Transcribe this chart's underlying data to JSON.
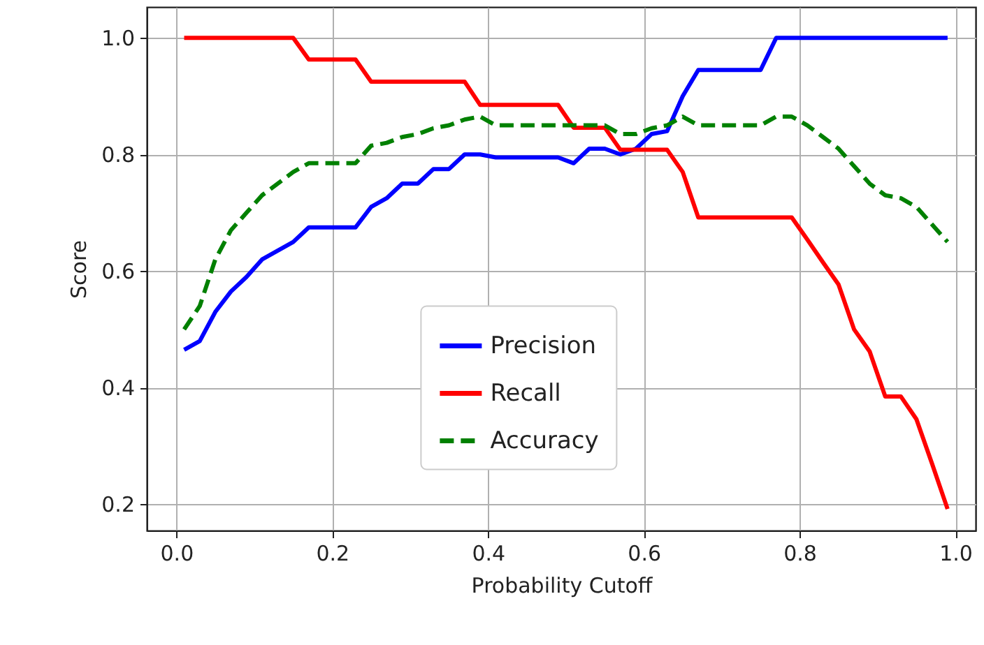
{
  "chart_data": {
    "type": "line",
    "xlabel": "Probability Cutoff",
    "ylabel": "Score",
    "xlim": [
      -0.038,
      1.026
    ],
    "ylim": [
      0.155,
      1.053
    ],
    "xticks": [
      {
        "value": 0,
        "label": "0.0"
      },
      0.2,
      0.4,
      0.6,
      0.8,
      {
        "value": 1,
        "label": "1.0"
      }
    ],
    "yticks": [
      0.2,
      0.4,
      0.6,
      0.8,
      {
        "value": 1,
        "label": "1.0"
      }
    ],
    "grid": true,
    "legend": "bottom",
    "marker": "none",
    "series": [
      {
        "name": "Precision",
        "color": "#0000ff",
        "line_style": "solid",
        "x": [
          0.01,
          0.03,
          0.05,
          0.07,
          0.09,
          0.11,
          0.13,
          0.15,
          0.17,
          0.23,
          0.25,
          0.27,
          0.29,
          0.31,
          0.33,
          0.35,
          0.37,
          0.39,
          0.41,
          0.49,
          0.51,
          0.53,
          0.55,
          0.57,
          0.59,
          0.61,
          0.63,
          0.65,
          0.67,
          0.75,
          0.77,
          0.99
        ],
        "values": [
          0.465,
          0.48,
          0.53,
          0.565,
          0.59,
          0.62,
          0.635,
          0.65,
          0.675,
          0.675,
          0.71,
          0.725,
          0.75,
          0.75,
          0.775,
          0.775,
          0.8,
          0.8,
          0.795,
          0.795,
          0.785,
          0.81,
          0.81,
          0.8,
          0.81,
          0.835,
          0.84,
          0.9,
          0.945,
          0.945,
          1.0,
          1.0
        ]
      },
      {
        "name": "Recall",
        "color": "#ff0000",
        "line_style": "solid",
        "x": [
          0.01,
          0.15,
          0.17,
          0.23,
          0.25,
          0.37,
          0.39,
          0.49,
          0.51,
          0.55,
          0.57,
          0.63,
          0.65,
          0.67,
          0.79,
          0.81,
          0.83,
          0.85,
          0.87,
          0.89,
          0.91,
          0.93,
          0.95,
          0.97,
          0.99
        ],
        "values": [
          1.0,
          1.0,
          0.963,
          0.963,
          0.925,
          0.925,
          0.885,
          0.885,
          0.846,
          0.846,
          0.808,
          0.808,
          0.77,
          0.692,
          0.692,
          0.654,
          0.615,
          0.577,
          0.5,
          0.462,
          0.385,
          0.385,
          0.346,
          0.27,
          0.192
        ]
      },
      {
        "name": "Accuracy",
        "color": "#008000",
        "line_style": "dashed",
        "x": [
          0.01,
          0.03,
          0.05,
          0.07,
          0.09,
          0.11,
          0.13,
          0.15,
          0.17,
          0.23,
          0.25,
          0.27,
          0.29,
          0.31,
          0.33,
          0.35,
          0.37,
          0.39,
          0.41,
          0.55,
          0.57,
          0.59,
          0.61,
          0.63,
          0.65,
          0.67,
          0.75,
          0.77,
          0.79,
          0.81,
          0.83,
          0.85,
          0.87,
          0.89,
          0.91,
          0.93,
          0.95,
          0.97,
          0.99
        ],
        "values": [
          0.5,
          0.54,
          0.62,
          0.67,
          0.7,
          0.73,
          0.75,
          0.77,
          0.785,
          0.785,
          0.815,
          0.82,
          0.83,
          0.835,
          0.845,
          0.85,
          0.86,
          0.865,
          0.85,
          0.85,
          0.835,
          0.835,
          0.845,
          0.85,
          0.865,
          0.85,
          0.85,
          0.865,
          0.865,
          0.85,
          0.83,
          0.81,
          0.78,
          0.75,
          0.73,
          0.725,
          0.71,
          0.68,
          0.65
        ]
      }
    ]
  }
}
